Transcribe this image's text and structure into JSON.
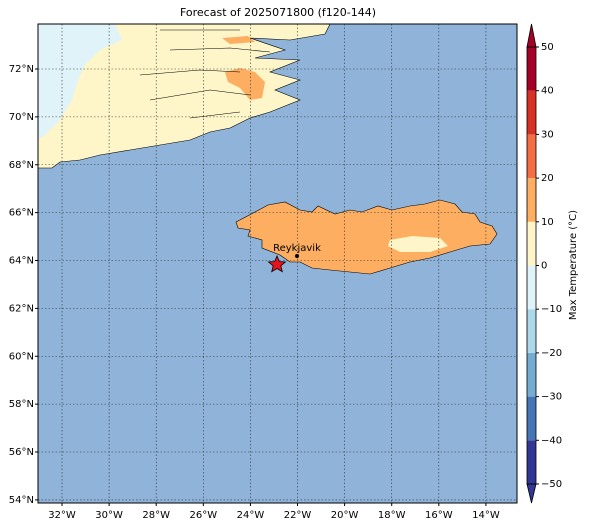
{
  "map": {
    "title": "Forecast of 2025071800 (f120-144)",
    "xlim": [
      -33.02,
      -12.68
    ],
    "ylim": [
      53.87,
      73.88
    ],
    "xticks": [
      {
        "value": -32,
        "label": "32°W"
      },
      {
        "value": -30,
        "label": "30°W"
      },
      {
        "value": -28,
        "label": "28°W"
      },
      {
        "value": -26,
        "label": "26°W"
      },
      {
        "value": -24,
        "label": "24°W"
      },
      {
        "value": -22,
        "label": "22°W"
      },
      {
        "value": -20,
        "label": "20°W"
      },
      {
        "value": -18,
        "label": "18°W"
      },
      {
        "value": -16,
        "label": "16°W"
      },
      {
        "value": -14,
        "label": "14°W"
      }
    ],
    "yticks": [
      {
        "value": 54,
        "label": "54°N"
      },
      {
        "value": 56,
        "label": "56°N"
      },
      {
        "value": 58,
        "label": "58°N"
      },
      {
        "value": 60,
        "label": "60°N"
      },
      {
        "value": 62,
        "label": "62°N"
      },
      {
        "value": 64,
        "label": "64°N"
      },
      {
        "value": 66,
        "label": "66°N"
      },
      {
        "value": 68,
        "label": "68°N"
      },
      {
        "value": 70,
        "label": "70°N"
      },
      {
        "value": 72,
        "label": "72°N"
      }
    ],
    "grid": true,
    "colorbar": {
      "label": "Max Temperature (°C)",
      "lim": [
        -50,
        50
      ],
      "ticks": [
        {
          "value": -50,
          "label": "−50"
        },
        {
          "value": -40,
          "label": "−40"
        },
        {
          "value": -30,
          "label": "−30"
        },
        {
          "value": -20,
          "label": "−20"
        },
        {
          "value": -10,
          "label": "−10"
        },
        0,
        10,
        20,
        30,
        40,
        50
      ],
      "colors": [
        "#313695",
        "#4575b4",
        "#74add1",
        "#abd9e9",
        "#e0f3f8",
        "#fef6c8",
        "#fdae61",
        "#f46d43",
        "#d73027",
        "#a50026"
      ]
    },
    "marker_label": "Reykjavik"
  }
}
